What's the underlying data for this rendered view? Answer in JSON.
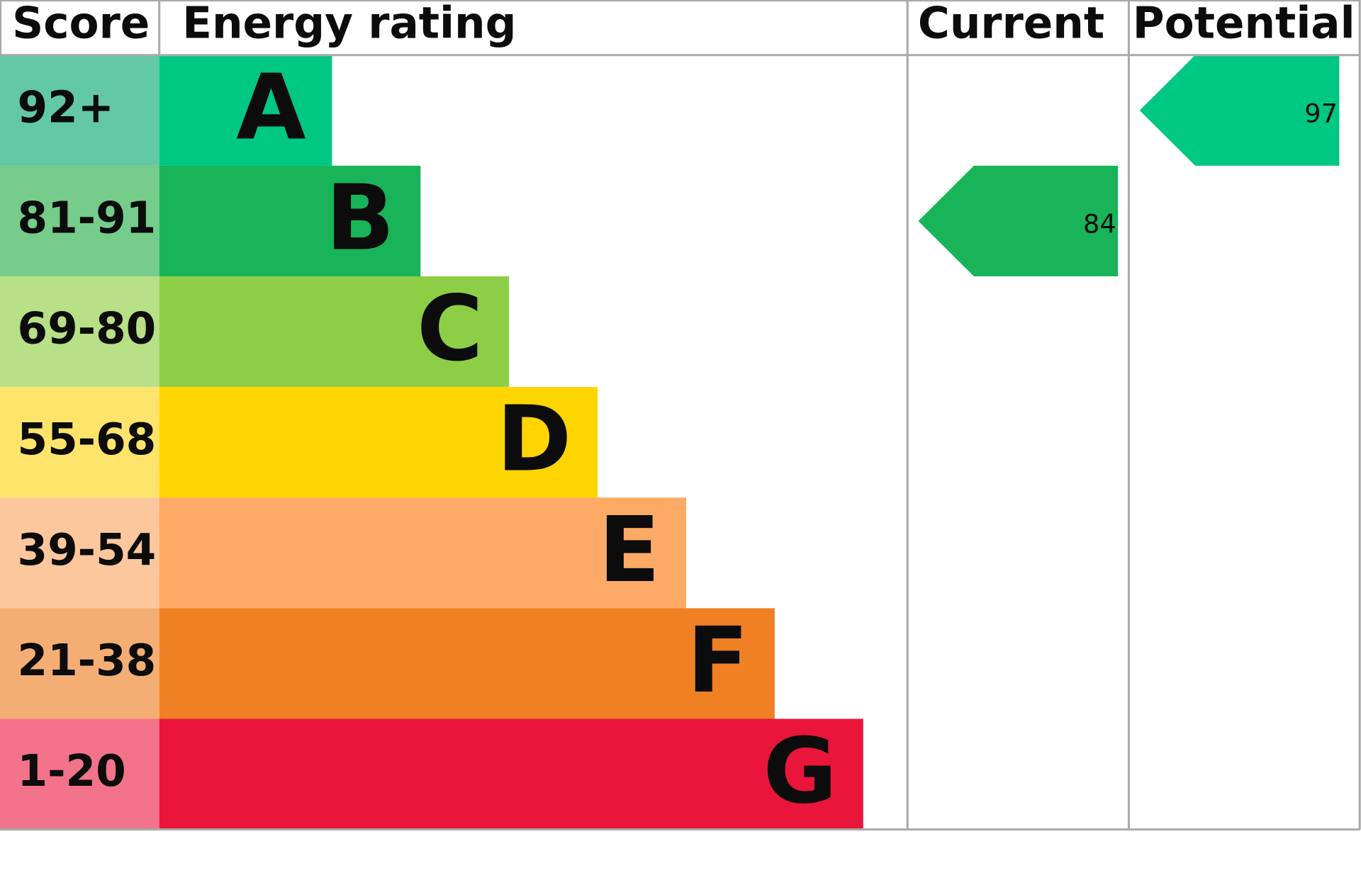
{
  "chart_data": {
    "type": "epc",
    "headers": {
      "score": "Score",
      "rating": "Energy rating",
      "current": "Current",
      "potential": "Potential"
    },
    "bands": [
      {
        "score": "92+",
        "letter": "A",
        "color": "#00c781",
        "score_color": "#63c8a6"
      },
      {
        "score": "81-91",
        "letter": "B",
        "color": "#19b459",
        "score_color": "#75cc8b"
      },
      {
        "score": "69-80",
        "letter": "C",
        "color": "#8dce46",
        "score_color": "#b7e087"
      },
      {
        "score": "55-68",
        "letter": "D",
        "color": "#ffd500",
        "score_color": "#ffe46b"
      },
      {
        "score": "39-54",
        "letter": "E",
        "color": "#fcaa65",
        "score_color": "#fdc79d"
      },
      {
        "score": "21-38",
        "letter": "F",
        "color": "#ef8023",
        "score_color": "#f4ae74"
      },
      {
        "score": "1-20",
        "letter": "G",
        "color": "#e9153b",
        "score_color": "#f2738a"
      }
    ],
    "current": {
      "value": 84
    },
    "potential": {
      "value": 97
    }
  }
}
